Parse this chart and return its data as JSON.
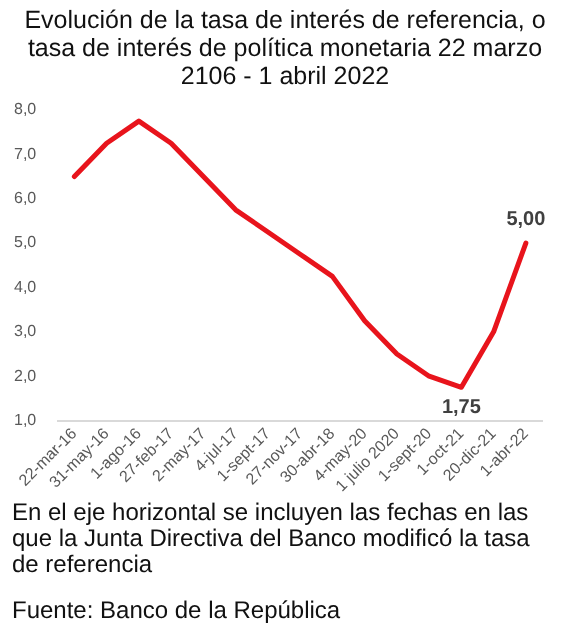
{
  "chart_data": {
    "type": "line",
    "title": "Evolución de la tasa de interés de referencia, o tasa de interés de política monetaria 22 marzo 2106 - 1 abril 2022",
    "categories": [
      "22-mar-16",
      "31-may-16",
      "1-ago-16",
      "27-feb-17",
      "2-may-17",
      "4-jul-17",
      "1-sept-17",
      "27-nov-17",
      "30-abr-18",
      "4-may-20",
      "1 julio 2020",
      "1-sept-20",
      "1-oct-21",
      "20-dic-21",
      "1-abr-22"
    ],
    "series": [
      {
        "color": "#e8141c",
        "values": [
          6.5,
          7.25,
          7.75,
          7.25,
          6.5,
          5.75,
          5.25,
          4.75,
          4.25,
          3.25,
          2.5,
          2.0,
          1.75,
          3.0,
          5.0
        ],
        "value_labels": [
          null,
          null,
          null,
          null,
          null,
          null,
          null,
          null,
          null,
          null,
          null,
          null,
          "1,75",
          null,
          "5,00"
        ]
      }
    ],
    "ylim": [
      1,
      8
    ],
    "yticks": [
      {
        "value": 1,
        "label": "1,0"
      },
      {
        "value": 2,
        "label": "2,0"
      },
      {
        "value": 3,
        "label": "3,0"
      },
      {
        "value": 4,
        "label": "4,0"
      },
      {
        "value": 5,
        "label": "5,0"
      },
      {
        "value": 6,
        "label": "6,0"
      },
      {
        "value": 7,
        "label": "7,0"
      },
      {
        "value": 8,
        "label": "8,0"
      }
    ],
    "grid": false,
    "legend": false,
    "marker": "none",
    "line_style": "solid",
    "annotations": [
      "En el eje horizontal se incluyen las fechas en las que la Junta Directiva del Banco modificó la tasa de referencia",
      "Fuente: Banco de la República"
    ]
  }
}
